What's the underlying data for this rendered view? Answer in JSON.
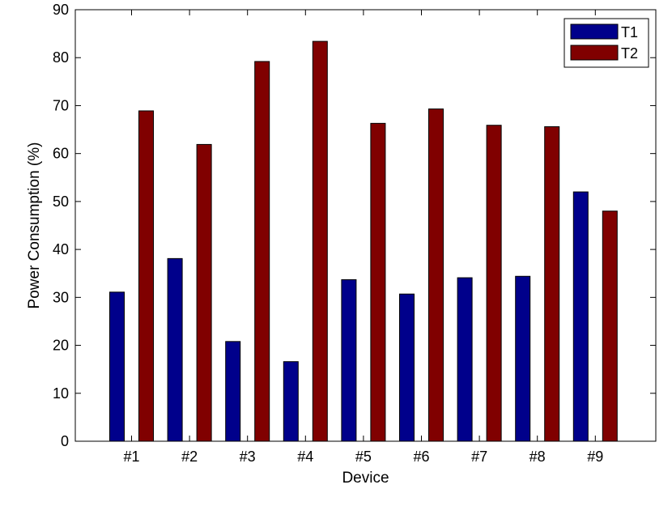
{
  "chart_data": {
    "type": "bar",
    "categories": [
      "#1",
      "#2",
      "#3",
      "#4",
      "#5",
      "#6",
      "#7",
      "#8",
      "#9"
    ],
    "series": [
      {
        "name": "T1",
        "color": "#00008b",
        "values": [
          31.1,
          38.1,
          20.8,
          16.6,
          33.7,
          30.7,
          34.1,
          34.4,
          52.0
        ]
      },
      {
        "name": "T2",
        "color": "#800000",
        "values": [
          68.9,
          61.9,
          79.2,
          83.4,
          66.3,
          69.3,
          65.9,
          65.6,
          48.0
        ]
      }
    ],
    "xlabel": "Device",
    "ylabel": "Power Consumption (%)",
    "ylim": [
      0,
      90
    ],
    "yticks": [
      0,
      10,
      20,
      30,
      40,
      50,
      60,
      70,
      80,
      90
    ],
    "grid": false,
    "legend_position": "top-right"
  }
}
